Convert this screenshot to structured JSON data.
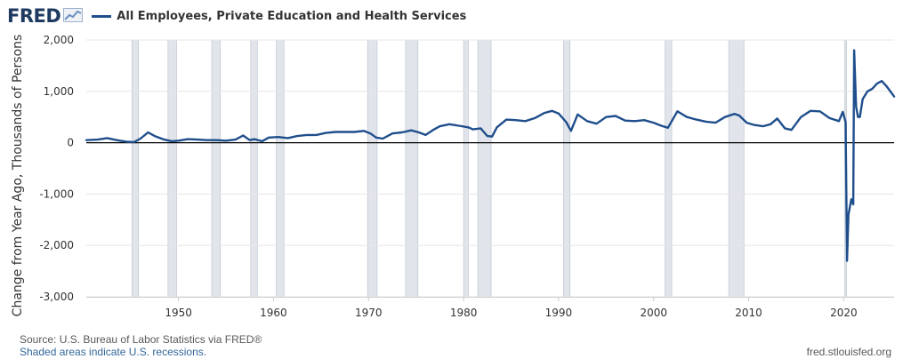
{
  "header": {
    "logo_text": "FRED",
    "logo_icon": "line-chart-icon",
    "legend_label": "All Employees, Private Education and Health Services"
  },
  "colors": {
    "series": "#1f4e8c",
    "recession": "#e1e5eb",
    "zero_line": "#000000",
    "grid": "#e6e6e6"
  },
  "chart_data": {
    "type": "line",
    "title": "",
    "xlabel": "",
    "ylabel": "Change from Year Ago, Thousands of Persons",
    "xlim": [
      1940.3,
      2025.3
    ],
    "ylim": [
      -3000,
      2000
    ],
    "yticks": [
      2000,
      1000,
      0,
      -1000,
      -2000,
      -3000
    ],
    "ytick_labels": [
      "2,000",
      "1,000",
      "0",
      "-1,000",
      "-2,000",
      "-3,000"
    ],
    "xticks": [
      1950,
      1960,
      1970,
      1980,
      1990,
      2000,
      2010,
      2020
    ],
    "xtick_labels": [
      "1950",
      "1960",
      "1970",
      "1980",
      "1990",
      "2000",
      "2010",
      "2020"
    ],
    "grid": true,
    "legend": "top-left",
    "recessions": [
      [
        1945.1,
        1945.8
      ],
      [
        1948.9,
        1949.8
      ],
      [
        1953.5,
        1954.4
      ],
      [
        1957.6,
        1958.3
      ],
      [
        1960.3,
        1961.1
      ],
      [
        1969.9,
        1970.9
      ],
      [
        1973.9,
        1975.2
      ],
      [
        1980.0,
        1980.5
      ],
      [
        1981.5,
        1982.9
      ],
      [
        1990.5,
        1991.2
      ],
      [
        2001.2,
        2001.9
      ],
      [
        2007.9,
        2009.5
      ],
      [
        2020.1,
        2020.3
      ]
    ],
    "series": [
      {
        "name": "All Employees, Private Education and Health Services",
        "x": [
          1940.3,
          1941.5,
          1942.5,
          1943.5,
          1944.5,
          1945.3,
          1946.0,
          1946.8,
          1947.5,
          1948.5,
          1949.3,
          1950.0,
          1951.0,
          1952.0,
          1953.0,
          1954.0,
          1955.0,
          1956.0,
          1956.8,
          1957.5,
          1958.0,
          1958.8,
          1959.5,
          1960.5,
          1961.5,
          1962.5,
          1963.5,
          1964.5,
          1965.5,
          1966.5,
          1967.5,
          1968.5,
          1969.5,
          1970.2,
          1970.8,
          1971.5,
          1972.5,
          1973.5,
          1974.5,
          1975.3,
          1976.0,
          1976.8,
          1977.5,
          1978.5,
          1979.5,
          1980.5,
          1981.0,
          1981.8,
          1982.5,
          1983.0,
          1983.5,
          1984.5,
          1985.5,
          1986.5,
          1987.5,
          1988.5,
          1989.3,
          1990.0,
          1990.8,
          1991.3,
          1992.0,
          1993.0,
          1994.0,
          1995.0,
          1996.0,
          1997.0,
          1998.0,
          1999.0,
          2000.0,
          2000.8,
          2001.5,
          2002.5,
          2003.5,
          2004.5,
          2005.5,
          2006.5,
          2007.5,
          2008.5,
          2009.0,
          2009.8,
          2010.5,
          2011.5,
          2012.3,
          2013.0,
          2013.8,
          2014.5,
          2015.5,
          2016.5,
          2017.5,
          2018.5,
          2019.5,
          2019.9,
          2020.2,
          2020.35,
          2020.5,
          2020.8,
          2021.0,
          2021.1,
          2021.3,
          2021.5,
          2021.7,
          2022.0,
          2022.5,
          2023.0,
          2023.5,
          2024.0,
          2024.5,
          2025.3
        ],
        "values": [
          50,
          60,
          90,
          50,
          20,
          10,
          80,
          200,
          130,
          60,
          30,
          40,
          70,
          60,
          50,
          50,
          40,
          60,
          140,
          50,
          70,
          30,
          100,
          110,
          90,
          130,
          150,
          150,
          190,
          210,
          210,
          210,
          230,
          180,
          100,
          80,
          180,
          200,
          240,
          200,
          150,
          250,
          320,
          360,
          330,
          300,
          260,
          280,
          130,
          120,
          300,
          450,
          440,
          420,
          480,
          580,
          620,
          570,
          400,
          230,
          550,
          420,
          370,
          500,
          520,
          430,
          420,
          440,
          390,
          330,
          290,
          610,
          500,
          450,
          410,
          390,
          500,
          560,
          530,
          390,
          350,
          320,
          360,
          470,
          280,
          250,
          500,
          620,
          610,
          480,
          420,
          600,
          400,
          -2300,
          -1400,
          -1100,
          -1200,
          1800,
          700,
          500,
          500,
          850,
          1000,
          1050,
          1150,
          1200,
          1100,
          900
        ]
      }
    ]
  },
  "footer": {
    "source": "Source: U.S. Bureau of Labor Statistics via FRED®",
    "note": "Shaded areas indicate U.S. recessions.",
    "url": "fred.stlouisfed.org"
  }
}
